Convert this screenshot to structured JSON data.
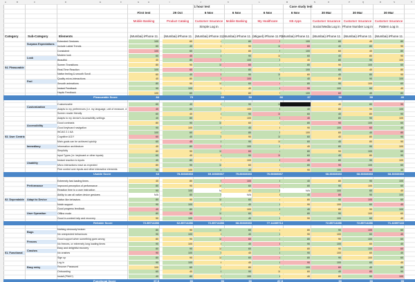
{
  "columns": [
    "A",
    "B",
    "C",
    "D",
    "E",
    "F",
    "G",
    "H",
    "I",
    "J",
    "K",
    "L",
    "M",
    "N",
    "O",
    "P",
    "Q",
    "R",
    "S",
    "T"
  ],
  "top_headers": {
    "one_hour_test": "1 hour test",
    "case_study_test": "Case study test"
  },
  "tests": [
    {
      "round": "First test",
      "app": "Mobile Banking",
      "device": "(Mumbai) iPhone 11"
    },
    {
      "round": "29 Oct",
      "app": "Product Catalog",
      "device": "(Mumbai) iPhone 11"
    },
    {
      "round": "6 Nov",
      "app": "Customer Insurance",
      "note": "Simple Log in",
      "device": "(Mumbai) iPhone 11"
    },
    {
      "round": "6 Nov",
      "app": "Mobile Banking",
      "device": "(Mumbai) iPhone 11"
    },
    {
      "round": "6 Nov",
      "app": "My Healthcare",
      "device": "(Miguel) iPhone 11 Pro"
    },
    {
      "round": "6 Nov",
      "app": "KB Apps",
      "device": "(Mumbai) iPhone 11"
    },
    {
      "round": "30 Mar",
      "app": "Customer Insurance",
      "note": "Social Media Log in",
      "device": "(Mumbai) iPhone 11"
    },
    {
      "round": "30 Mar",
      "app": "Customer Insurance",
      "note": "Phone Number Log in",
      "device": "(Mumbai) iPhone 11"
    },
    {
      "round": "30 Mar",
      "app": "Customer Insurance",
      "note": "Pattern Log in",
      "device": "(Mumbai) iPhone 11"
    }
  ],
  "headers": {
    "category": "Category",
    "sub_category": "Sub-Category",
    "elements": "Elements"
  },
  "categories": [
    {
      "name": "04. Pleasurable",
      "subs": [
        {
          "name": "Surpass Expectations",
          "elements": [
            "Extended Gestures",
            "Include Latest Trends"
          ]
        },
        {
          "name": "Look",
          "elements": [
            "Consistent",
            "Modern look",
            "Beautiful",
            "Screen Transitions"
          ]
        },
        {
          "name": "Feel",
          "elements": [
            "Real-Time Reaction",
            "Native feeling & smooth Scroll",
            "Quality micro-interactions",
            "Smooth animations",
            "Instant Feedback",
            "Haptic Feedback"
          ]
        }
      ],
      "score_label": "Pleasurable Score",
      "scores": [
        "84",
        "75",
        "60",
        "53",
        "66",
        "67",
        "59",
        "59",
        "40"
      ]
    },
    {
      "name": "03. User Centric",
      "subs": [
        {
          "name": "Customization",
          "elements": [
            "Customizable",
            "Adapts to my preferences (i.e. my language, unit of measure, date & time format)"
          ]
        },
        {
          "name": "Accessibility",
          "elements": [
            "Screen reader friendly",
            "Adapts to my device's Accessibility settings",
            "Good contrasts",
            "Good keyboard navigation",
            "WCAG 2.1 AA",
            "Cognitive A11Y"
          ]
        },
        {
          "name": "Immediacy",
          "elements": [
            "Main goals can be achieved quickly",
            "Information architecture",
            "Simplicity"
          ]
        },
        {
          "name": "Usability",
          "elements": [
            "Input Types (i.e. keyboard or other inputs)",
            "Instant reaction to inputs",
            "Micro interactions react as expected",
            "Fine control over inputs and other interactive elements"
          ]
        }
      ],
      "score_label": "Usable Score",
      "scores": [
        "64",
        "78.33333333",
        "69.16666667",
        "75.83333333",
        "76.66666667",
        "",
        "68.33333333",
        "68.33333333",
        "68.33333333"
      ]
    },
    {
      "name": "02. Dependable",
      "subs": [
        {
          "name": "Performance",
          "elements": [
            "Extremely fast loading times",
            "Improved perception of performance",
            "Reaction time to a user instruction"
          ]
        },
        {
          "name": "Adapt to Device",
          "elements": [
            "Ability to use all native device gestures",
            "Native like behaviors",
            "Notch support"
          ]
        },
        {
          "name": "User Operation",
          "elements": [
            "Good progress feedback",
            "Offline mode",
            "Good in-context help and recovery"
          ]
        }
      ],
      "score_label": "Reliable Score",
      "scores": [
        "72.85714286",
        "62.85714286",
        "72.85714286",
        "68.33333333",
        "77.14285714",
        "",
        "72.85714286",
        "72.85714286",
        "71.42857143"
      ]
    },
    {
      "name": "01. Functional",
      "subs": [
        {
          "name": "Bugs",
          "elements": [
            "Nothing obviously broken",
            "No unexpected behaviours"
          ]
        },
        {
          "name": "Freezes",
          "elements": [
            "Good support when something goes wrong",
            "No freezes, or extremely long loading times"
          ]
        },
        {
          "name": "Crashes",
          "elements": [
            "Easy and delightful recovery",
            "No crashes"
          ]
        },
        {
          "name": "Easy entry",
          "elements": [
            "Sign up",
            "Log in",
            "Recover Password",
            "Onboarding",
            "Install (PWA?)"
          ]
        }
      ],
      "score_label": "Functional Score",
      "scores": [
        "97.5",
        "90",
        "90",
        "90",
        "87.5",
        "",
        "90",
        "90",
        "95"
      ]
    }
  ],
  "colors": {
    "green": "#c5e0b4",
    "yellow": "#fbe7a1",
    "red": "#f4b6b6",
    "blue": "#4a86c8",
    "black": "#111111",
    "light_blue": "#dce9f7"
  },
  "values": {
    "hundred": "100",
    "ninety": "90",
    "sixty": "60",
    "eighty": "80",
    "forty": "40",
    "na": "N/A"
  }
}
